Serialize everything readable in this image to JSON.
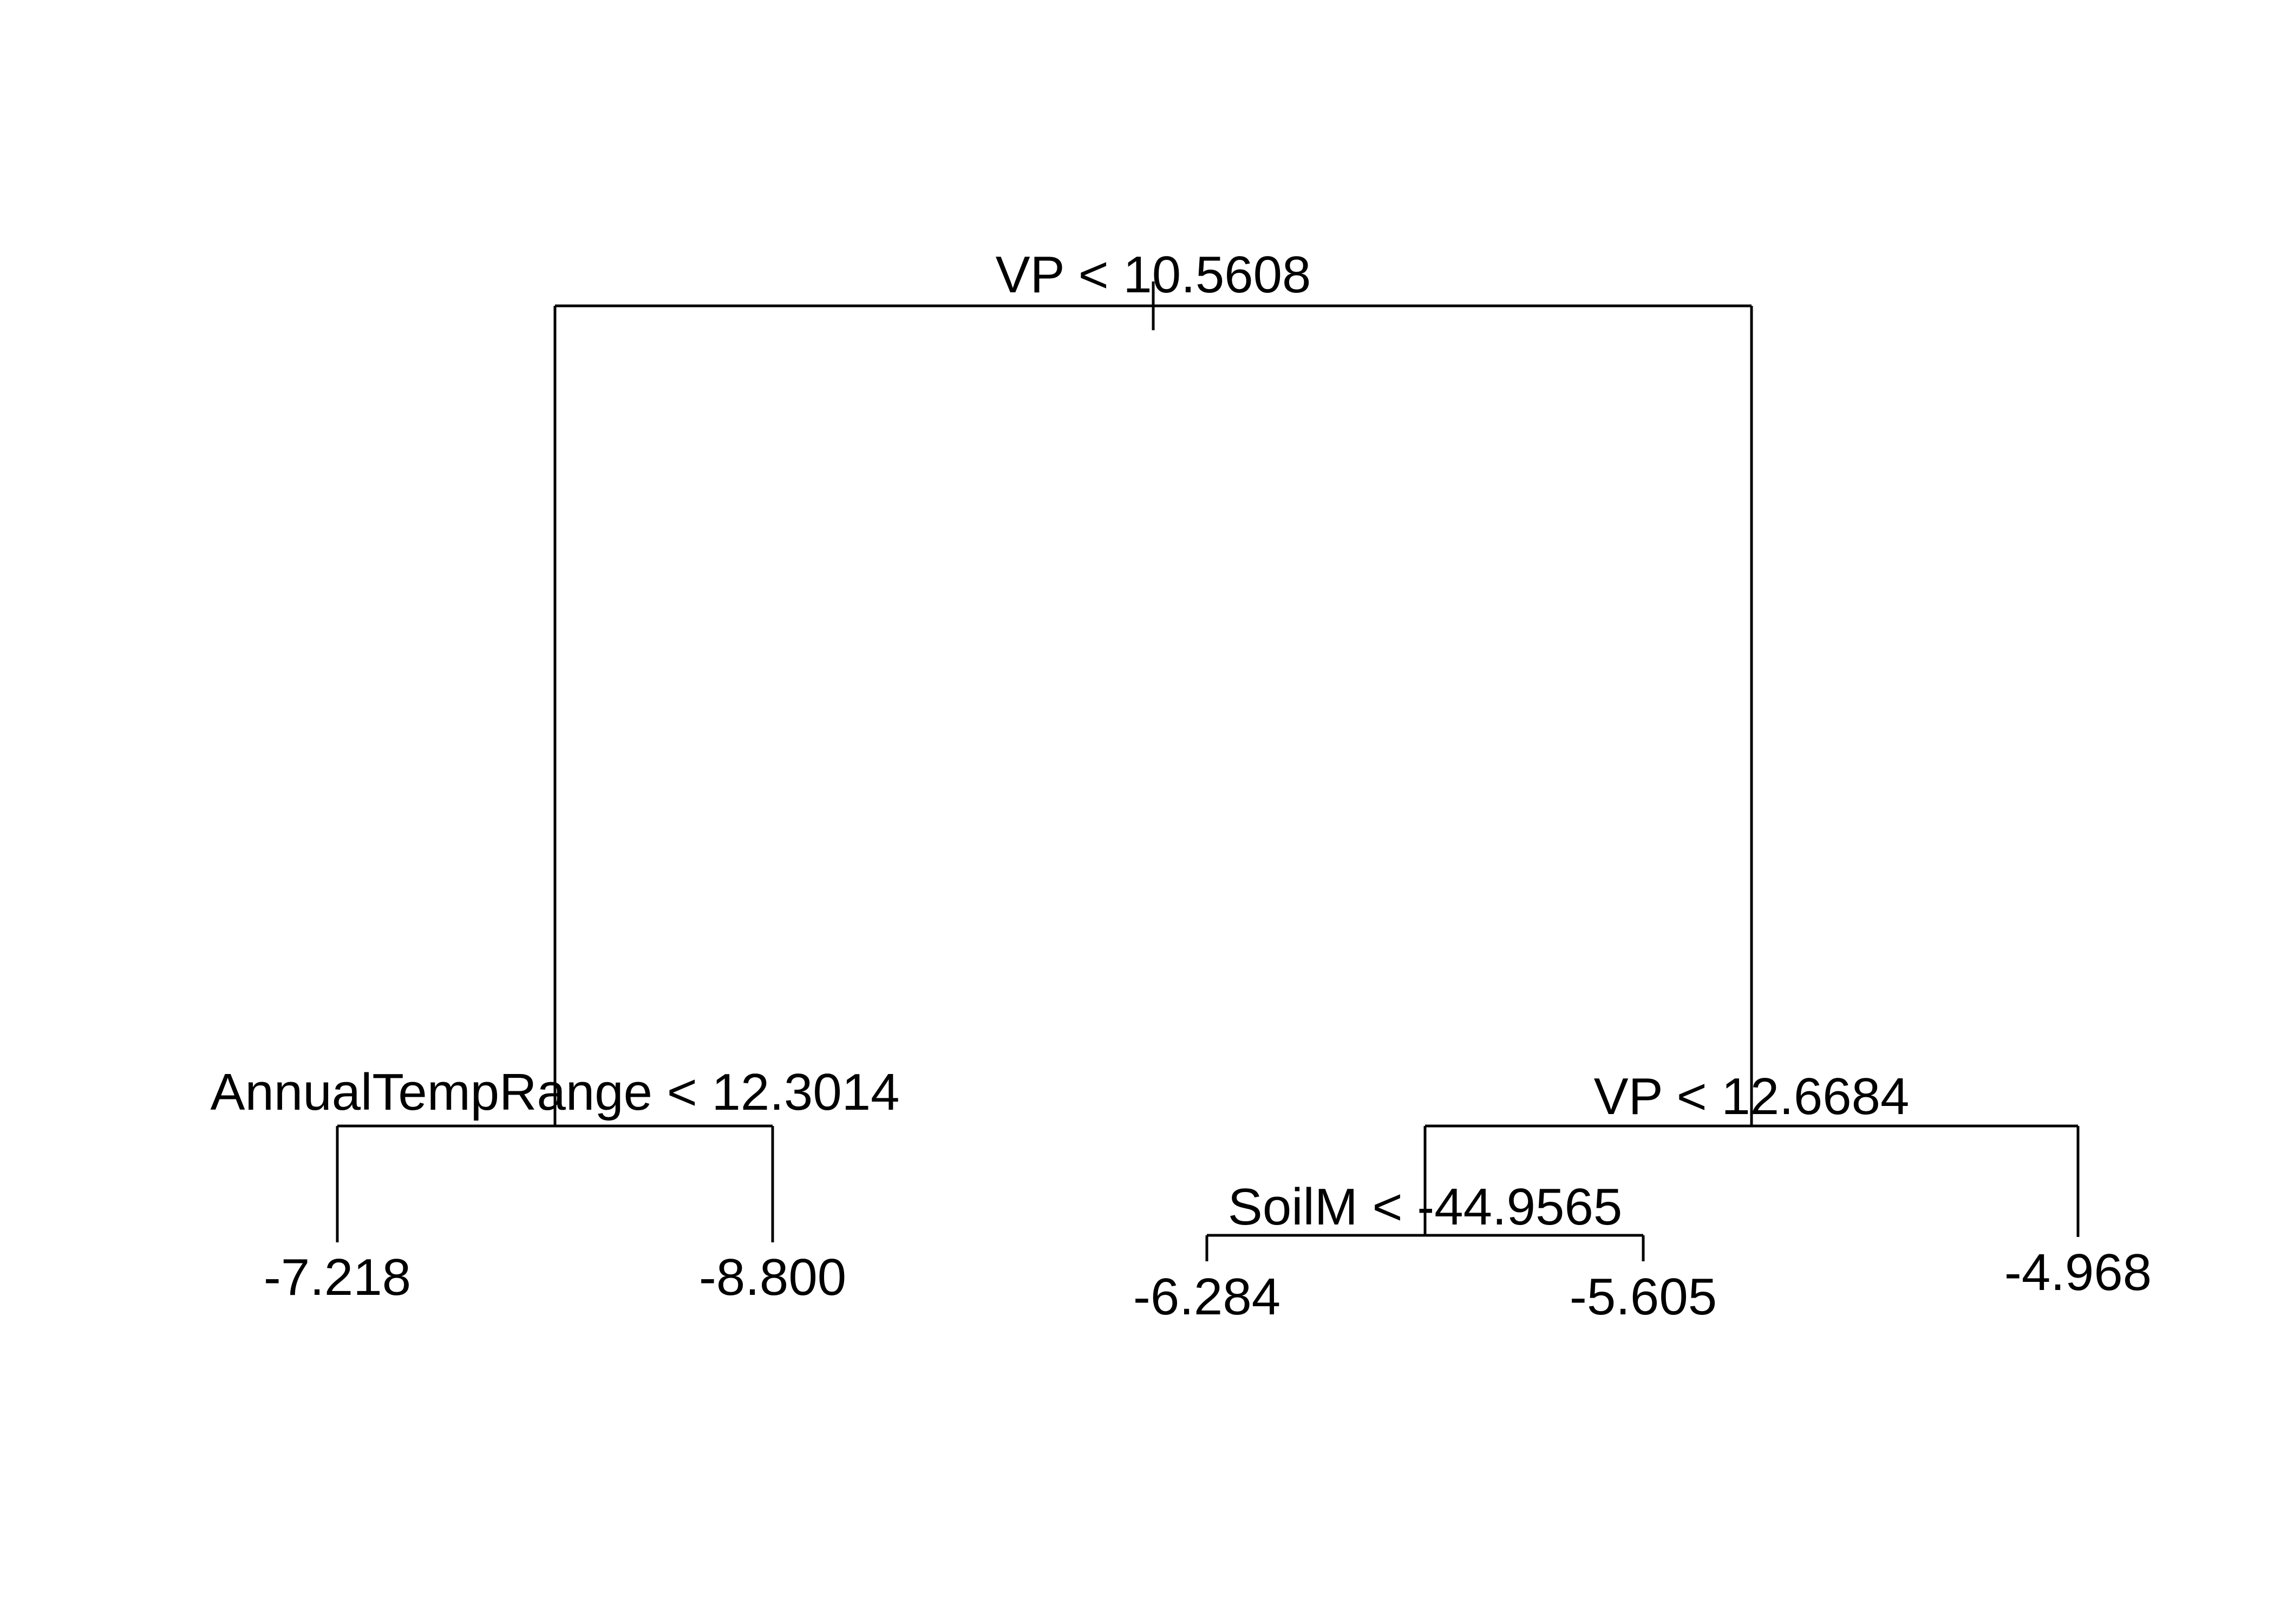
{
  "tree": {
    "root": {
      "split": "VP < 10.5608",
      "left": {
        "split": "AnnualTempRange < 12.3014",
        "left": {
          "leaf": "-7.218"
        },
        "right": {
          "leaf": "-8.800"
        }
      },
      "right": {
        "split": "VP < 12.6684",
        "left": {
          "split": "SoilM < -44.9565",
          "left": {
            "leaf": "-6.284"
          },
          "right": {
            "leaf": "-5.605"
          }
        },
        "right": {
          "leaf": "-4.968"
        }
      }
    },
    "colors": {
      "line": "#000000",
      "background": "#ffffff"
    }
  }
}
